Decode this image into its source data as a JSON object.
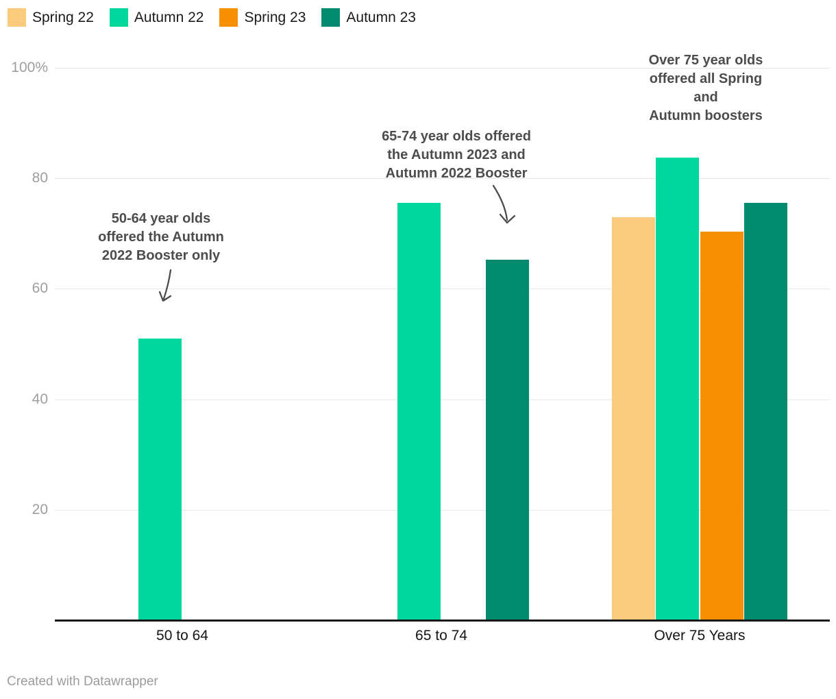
{
  "footer": {
    "credit": "Created with Datawrapper"
  },
  "chart_data": {
    "type": "bar",
    "title": "",
    "xlabel": "",
    "ylabel": "",
    "categories": [
      "50 to 64",
      "65 to 74",
      "Over 75 Years"
    ],
    "series": [
      {
        "name": "Spring 22",
        "color": "#FBCB7D",
        "values": [
          null,
          null,
          73
        ]
      },
      {
        "name": "Autumn 22",
        "color": "#00D79C",
        "values": [
          51,
          75.5,
          83.8
        ]
      },
      {
        "name": "Spring 23",
        "color": "#F79000",
        "values": [
          null,
          null,
          70.4
        ]
      },
      {
        "name": "Autumn 23",
        "color": "#008B70",
        "values": [
          null,
          65.2,
          75.6
        ]
      }
    ],
    "ylim": [
      0,
      100
    ],
    "yticks": [
      {
        "value": 100,
        "label": "100%"
      },
      {
        "value": 80,
        "label": "80"
      },
      {
        "value": 60,
        "label": "60"
      },
      {
        "value": 40,
        "label": "40"
      },
      {
        "value": 20,
        "label": "20"
      }
    ],
    "grid": "horizontal",
    "legend_position": "top-left",
    "annotations": [
      {
        "text": "50-64 year olds\noffered the Autumn\n2022 Booster only"
      },
      {
        "text": "65-74 year olds offered\nthe Autumn 2023 and\nAutumn 2022 Booster"
      },
      {
        "text": "Over 75 year olds\noffered all Spring and\nAutumn boosters"
      }
    ]
  }
}
